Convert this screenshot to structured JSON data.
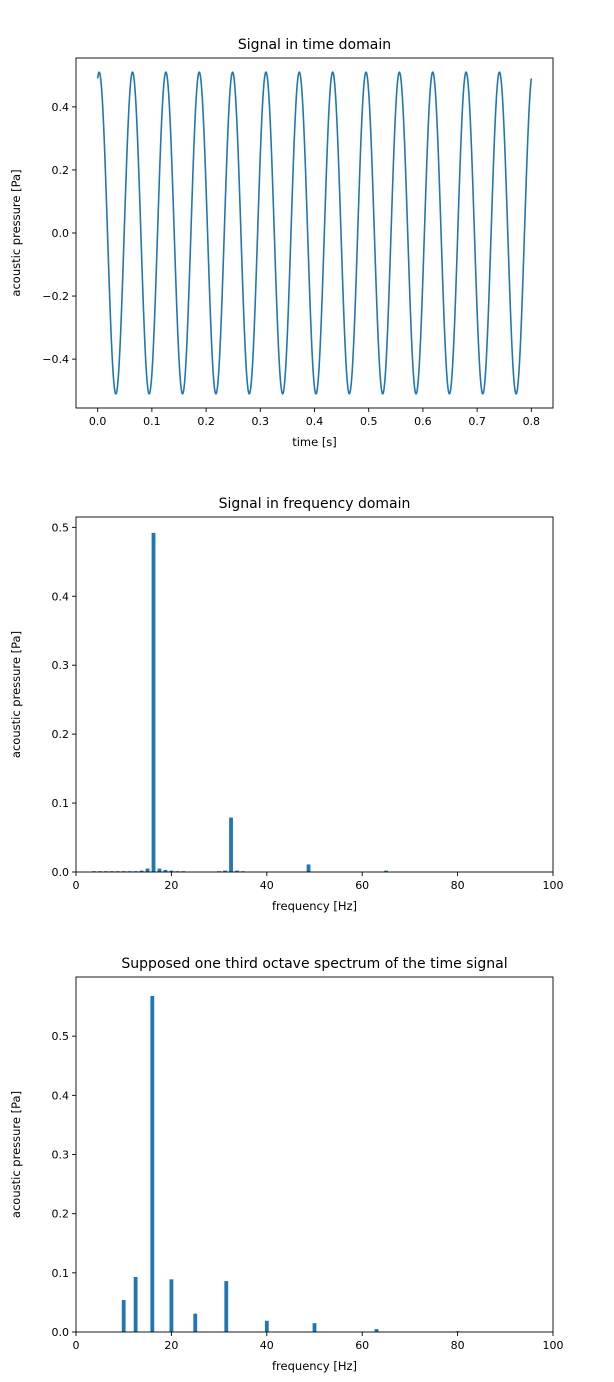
{
  "chart_data": [
    {
      "type": "line",
      "title": "Signal in time domain",
      "xlabel": "time [s]",
      "ylabel": "acoustic pressure [Pa]",
      "xlim": [
        -0.04,
        0.84
      ],
      "ylim": [
        -0.555,
        0.555
      ],
      "xticks": [
        "0.0",
        "0.1",
        "0.2",
        "0.3",
        "0.4",
        "0.5",
        "0.6",
        "0.7",
        "0.8"
      ],
      "yticks": [
        "−0.4",
        "−0.2",
        "0.0",
        "0.2",
        "0.4"
      ],
      "line_color": "#1f77b4",
      "series": [
        {
          "function": "0.51*cos(2*pi*16.25*t - 0.28)",
          "t_range": [
            0,
            0.8
          ]
        }
      ]
    },
    {
      "type": "bar",
      "title": "Signal in frequency domain",
      "xlabel": "frequency [Hz]",
      "ylabel": "acoustic pressure [Pa]",
      "xlim": [
        0,
        100
      ],
      "ylim": [
        0,
        0.515
      ],
      "xticks": [
        "0",
        "20",
        "40",
        "60",
        "80",
        "100"
      ],
      "yticks": [
        "0.0",
        "0.1",
        "0.2",
        "0.3",
        "0.4",
        "0.5"
      ],
      "bar_color": "#1f77b4",
      "x": [
        3.75,
        5.0,
        6.25,
        7.5,
        8.75,
        10.0,
        11.25,
        12.5,
        13.75,
        15.0,
        16.25,
        17.5,
        18.75,
        20.0,
        21.25,
        22.5,
        30.0,
        31.25,
        32.5,
        33.75,
        35.0,
        48.75,
        65.0
      ],
      "values": [
        0.001,
        0.001,
        0.001,
        0.001,
        0.001,
        0.001,
        0.001,
        0.001,
        0.002,
        0.005,
        0.492,
        0.005,
        0.003,
        0.002,
        0.001,
        0.001,
        0.001,
        0.002,
        0.079,
        0.002,
        0.001,
        0.011,
        0.002
      ]
    },
    {
      "type": "bar",
      "title": "Supposed one third octave spectrum of the time signal",
      "xlabel": "frequency [Hz]",
      "ylabel": "acoustic pressure [Pa]",
      "xlim": [
        0,
        100
      ],
      "ylim": [
        0,
        0.6
      ],
      "xticks": [
        "0",
        "20",
        "40",
        "60",
        "80",
        "100"
      ],
      "yticks": [
        "0.0",
        "0.1",
        "0.2",
        "0.3",
        "0.4",
        "0.5"
      ],
      "bar_color": "#1f77b4",
      "x": [
        10,
        12.5,
        16,
        20,
        25,
        31.5,
        40,
        50,
        63,
        80
      ],
      "values": [
        0.054,
        0.093,
        0.568,
        0.089,
        0.031,
        0.086,
        0.019,
        0.015,
        0.005,
        0.001
      ]
    }
  ]
}
